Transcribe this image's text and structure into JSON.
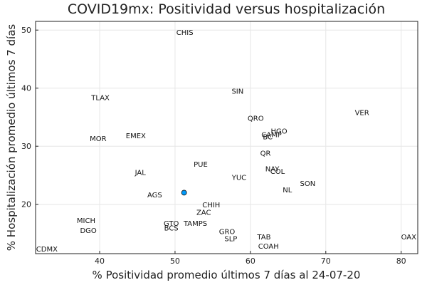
{
  "chart_data": {
    "type": "scatter",
    "title": "COVID19mx: Positividad versus hospitalización",
    "xlabel": "% Positividad promedio últimos 7 días al 24-07-20",
    "ylabel": "% Hospitalización promedio últimos 7 días",
    "xlim": [
      31.5,
      82.2
    ],
    "ylim": [
      11.5,
      51.5
    ],
    "xticks": [
      40,
      50,
      60,
      70,
      80
    ],
    "yticks": [
      20,
      30,
      40,
      50
    ],
    "grid": true,
    "point_color": "#009AFA",
    "highlight_points": [
      {
        "x": 51.2,
        "y": 22.0
      }
    ],
    "labels": [
      {
        "text": "CHIS",
        "x": 51.3,
        "y": 49.6
      },
      {
        "text": "SIN",
        "x": 58.3,
        "y": 39.5
      },
      {
        "text": "TLAX",
        "x": 40.1,
        "y": 38.4
      },
      {
        "text": "VER",
        "x": 74.8,
        "y": 35.8
      },
      {
        "text": "QRO",
        "x": 60.7,
        "y": 34.8
      },
      {
        "text": "HGO",
        "x": 63.8,
        "y": 32.6
      },
      {
        "text": "CAMP",
        "x": 62.8,
        "y": 32.0
      },
      {
        "text": "BC",
        "x": 62.3,
        "y": 31.6
      },
      {
        "text": "EMEX",
        "x": 44.8,
        "y": 31.8
      },
      {
        "text": "MOR",
        "x": 39.8,
        "y": 31.3
      },
      {
        "text": "QR",
        "x": 62.0,
        "y": 28.8
      },
      {
        "text": "PUE",
        "x": 53.4,
        "y": 26.9
      },
      {
        "text": "NAY",
        "x": 62.9,
        "y": 26.1
      },
      {
        "text": "COL",
        "x": 63.6,
        "y": 25.7
      },
      {
        "text": "JAL",
        "x": 45.4,
        "y": 25.5
      },
      {
        "text": "YUC",
        "x": 58.5,
        "y": 24.6
      },
      {
        "text": "SON",
        "x": 67.6,
        "y": 23.6
      },
      {
        "text": "NL",
        "x": 64.9,
        "y": 22.5
      },
      {
        "text": "AGS",
        "x": 47.3,
        "y": 21.6
      },
      {
        "text": "CHIH",
        "x": 54.8,
        "y": 19.9
      },
      {
        "text": "ZAC",
        "x": 53.8,
        "y": 18.6
      },
      {
        "text": "MICH",
        "x": 38.2,
        "y": 17.2
      },
      {
        "text": "GTO",
        "x": 49.5,
        "y": 16.7
      },
      {
        "text": "TAMPS",
        "x": 52.7,
        "y": 16.7
      },
      {
        "text": "BCS",
        "x": 49.5,
        "y": 15.9
      },
      {
        "text": "DGO",
        "x": 38.5,
        "y": 15.5
      },
      {
        "text": "GRO",
        "x": 56.9,
        "y": 15.3
      },
      {
        "text": "TAB",
        "x": 61.8,
        "y": 14.4
      },
      {
        "text": "SLP",
        "x": 57.4,
        "y": 14.1
      },
      {
        "text": "OAX",
        "x": 81.0,
        "y": 14.4
      },
      {
        "text": "COAH",
        "x": 62.4,
        "y": 12.8
      },
      {
        "text": "CDMX",
        "x": 33.0,
        "y": 12.3
      }
    ]
  }
}
